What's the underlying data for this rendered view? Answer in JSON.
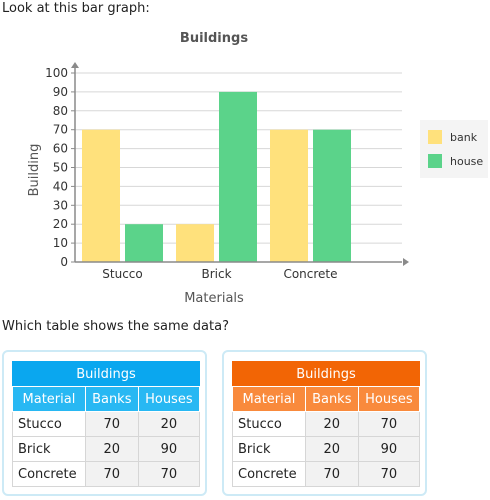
{
  "prompt": "Look at this bar graph:",
  "question": "Which table shows the same data?",
  "colors": {
    "bank": "#ffe17c",
    "house": "#5bd38a",
    "axis": "#8a8a8a",
    "grid": "#d7d7d7"
  },
  "chart_data": {
    "type": "bar",
    "title": "Buildings",
    "xlabel": "Materials",
    "ylabel": "Building",
    "categories": [
      "Stucco",
      "Brick",
      "Concrete"
    ],
    "series": [
      {
        "name": "bank",
        "values": [
          70,
          20,
          70
        ]
      },
      {
        "name": "house",
        "values": [
          20,
          90,
          70
        ]
      }
    ],
    "ylim": [
      0,
      100
    ],
    "yticks": [
      0,
      10,
      20,
      30,
      40,
      50,
      60,
      70,
      80,
      90,
      100
    ],
    "grid": true,
    "legend": "right"
  },
  "tables": [
    {
      "title": "Buildings",
      "headers": [
        "Material",
        "Banks",
        "Houses"
      ],
      "rows": [
        [
          "Stucco",
          "70",
          "20"
        ],
        [
          "Brick",
          "20",
          "90"
        ],
        [
          "Concrete",
          "70",
          "70"
        ]
      ]
    },
    {
      "title": "Buildings",
      "headers": [
        "Material",
        "Banks",
        "Houses"
      ],
      "rows": [
        [
          "Stucco",
          "20",
          "70"
        ],
        [
          "Brick",
          "20",
          "90"
        ],
        [
          "Concrete",
          "70",
          "70"
        ]
      ]
    }
  ]
}
